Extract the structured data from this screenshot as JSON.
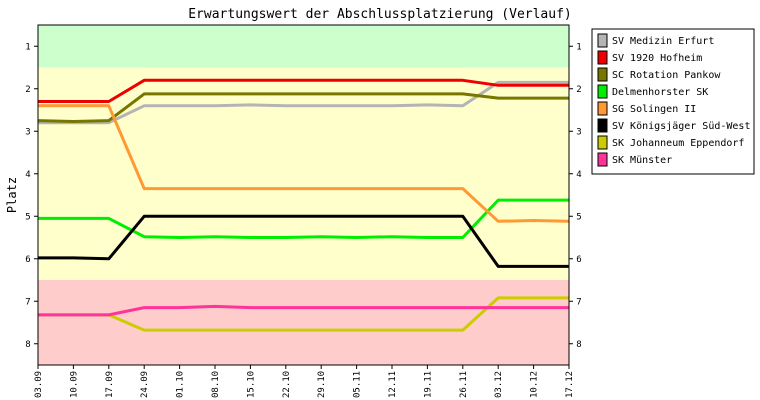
{
  "chart_data": {
    "type": "line",
    "title": "Erwartungswert der Abschlussplatzierung (Verlauf)",
    "ylabel": "Platz",
    "xlabel": "",
    "y_inverted": true,
    "ylim": [
      0.5,
      8.5
    ],
    "yticks": [
      "1",
      "2",
      "3",
      "4",
      "5",
      "6",
      "7",
      "8"
    ],
    "categories": [
      "03.09",
      "10.09",
      "17.09",
      "24.09",
      "01.10",
      "08.10",
      "15.10",
      "22.10",
      "29.10",
      "05.11",
      "12.11",
      "19.11",
      "26.11",
      "03.12",
      "10.12",
      "17.12"
    ],
    "bands": [
      {
        "from": 0.5,
        "to": 1.5,
        "color": "#ccffcc"
      },
      {
        "from": 1.5,
        "to": 6.5,
        "color": "#ffffcc"
      },
      {
        "from": 6.5,
        "to": 8.5,
        "color": "#ffcccc"
      }
    ],
    "legend_position": "right",
    "series": [
      {
        "name": "SV Medizin Erfurt",
        "color": "#b4b4b4",
        "values": [
          2.8,
          2.8,
          2.8,
          2.4,
          2.4,
          2.4,
          2.38,
          2.4,
          2.4,
          2.4,
          2.4,
          2.38,
          2.4,
          1.85,
          1.85,
          1.85
        ]
      },
      {
        "name": "SV 1920 Hofheim",
        "color": "#ee0000",
        "values": [
          2.3,
          2.3,
          2.3,
          1.8,
          1.8,
          1.8,
          1.8,
          1.8,
          1.8,
          1.8,
          1.8,
          1.8,
          1.8,
          1.92,
          1.92,
          1.92
        ]
      },
      {
        "name": "SC Rotation Pankow",
        "color": "#777700",
        "values": [
          2.75,
          2.77,
          2.75,
          2.12,
          2.12,
          2.12,
          2.12,
          2.12,
          2.12,
          2.12,
          2.12,
          2.12,
          2.12,
          2.22,
          2.22,
          2.22
        ]
      },
      {
        "name": "Delmenhorster SK",
        "color": "#00ee00",
        "values": [
          5.05,
          5.05,
          5.05,
          5.48,
          5.5,
          5.48,
          5.5,
          5.5,
          5.48,
          5.5,
          5.48,
          5.5,
          5.5,
          4.62,
          4.62,
          4.62
        ]
      },
      {
        "name": "SG Solingen II",
        "color": "#ff9933",
        "values": [
          2.4,
          2.4,
          2.4,
          4.35,
          4.35,
          4.35,
          4.35,
          4.35,
          4.35,
          4.35,
          4.35,
          4.35,
          4.35,
          5.12,
          5.1,
          5.12
        ]
      },
      {
        "name": "SV Königsjäger Süd-West",
        "color": "#000000",
        "values": [
          5.98,
          5.98,
          6.0,
          5.0,
          5.0,
          5.0,
          5.0,
          5.0,
          5.0,
          5.0,
          5.0,
          5.0,
          5.0,
          6.18,
          6.18,
          6.18
        ]
      },
      {
        "name": "SK Johanneum Eppendorf",
        "color": "#cccc00",
        "values": [
          7.32,
          7.32,
          7.32,
          7.68,
          7.68,
          7.68,
          7.68,
          7.68,
          7.68,
          7.68,
          7.68,
          7.68,
          7.68,
          6.92,
          6.92,
          6.92
        ]
      },
      {
        "name": "SK Münster",
        "color": "#ff3399",
        "values": [
          7.32,
          7.32,
          7.32,
          7.15,
          7.15,
          7.12,
          7.15,
          7.15,
          7.15,
          7.15,
          7.15,
          7.15,
          7.15,
          7.15,
          7.15,
          7.15
        ]
      }
    ]
  }
}
